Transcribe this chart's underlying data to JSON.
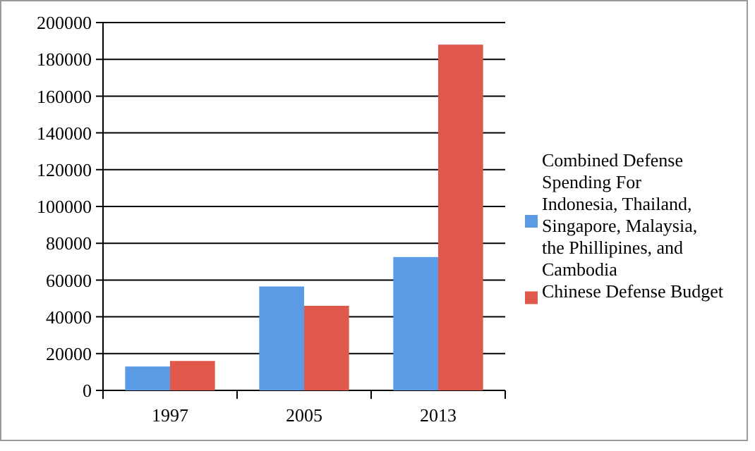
{
  "chart_data": {
    "type": "bar",
    "categories": [
      "1997",
      "2005",
      "2013"
    ],
    "series": [
      {
        "name": "Combined Defense Spending For Indonesia, Thailand, Singapore, Malaysia, the Phillipines, and Cambodia",
        "color": "#5b9be6",
        "values": [
          13000,
          56500,
          72500
        ]
      },
      {
        "name": "Chinese Defense Budget",
        "color": "#e0574c",
        "values": [
          16000,
          46000,
          188000
        ]
      }
    ],
    "ylim": [
      0,
      200000
    ],
    "yticks": [
      0,
      20000,
      40000,
      60000,
      80000,
      100000,
      120000,
      140000,
      160000,
      180000,
      200000
    ],
    "grid": "y",
    "legend": "right"
  }
}
